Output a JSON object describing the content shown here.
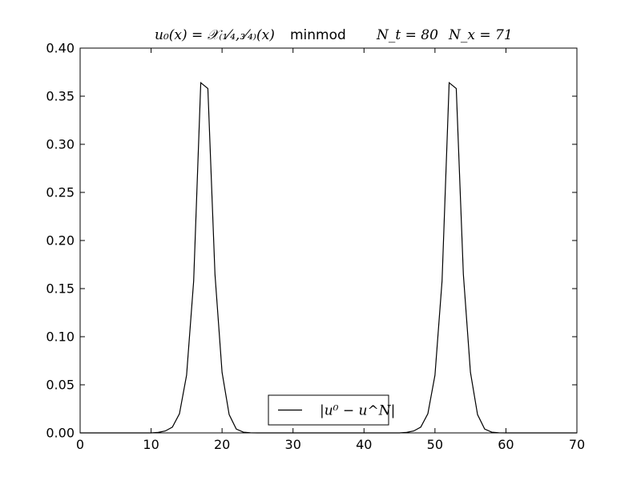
{
  "chart_data": {
    "type": "line",
    "title": {
      "parts": [
        "u₀(x) = 𝒳₍₁⁄₄,₃⁄₄₎(x)",
        "minmod",
        "N_t = 80",
        "N_x = 71"
      ]
    },
    "xlabel": "",
    "ylabel": "",
    "xlim": [
      0,
      70
    ],
    "ylim": [
      0,
      0.4
    ],
    "x_ticks": [
      0,
      10,
      20,
      30,
      40,
      50,
      60,
      70
    ],
    "x_tick_labels": [
      "0",
      "10",
      "20",
      "30",
      "40",
      "50",
      "60",
      "70"
    ],
    "y_ticks": [
      0.0,
      0.05,
      0.1,
      0.15,
      0.2,
      0.25,
      0.3,
      0.35,
      0.4
    ],
    "y_tick_labels": [
      "0.00",
      "0.05",
      "0.10",
      "0.15",
      "0.20",
      "0.25",
      "0.30",
      "0.35",
      "0.40"
    ],
    "grid": false,
    "legend_position": "bottom-center",
    "series": [
      {
        "name": "|u⁰ − u^N|",
        "color": "#000000",
        "x": [
          0,
          1,
          2,
          3,
          4,
          5,
          6,
          7,
          8,
          9,
          10,
          11,
          12,
          13,
          14,
          15,
          16,
          17,
          18,
          19,
          20,
          21,
          22,
          23,
          24,
          25,
          26,
          27,
          28,
          29,
          30,
          31,
          32,
          33,
          34,
          35,
          36,
          37,
          38,
          39,
          40,
          41,
          42,
          43,
          44,
          45,
          46,
          47,
          48,
          49,
          50,
          51,
          52,
          53,
          54,
          55,
          56,
          57,
          58,
          59,
          60,
          61,
          62,
          63,
          64,
          65,
          66,
          67,
          68,
          69,
          70
        ],
        "y": [
          0,
          0,
          0,
          0,
          0,
          0,
          0,
          0,
          0,
          0,
          0,
          0.0005,
          0.002,
          0.006,
          0.02,
          0.06,
          0.158,
          0.364,
          0.358,
          0.165,
          0.063,
          0.019,
          0.004,
          0.0008,
          0.0001,
          0,
          0,
          0,
          0,
          0,
          0,
          0,
          0,
          0,
          0,
          0,
          0,
          0,
          0,
          0,
          0,
          0,
          0,
          0,
          0,
          0,
          0.0005,
          0.002,
          0.006,
          0.02,
          0.06,
          0.158,
          0.364,
          0.358,
          0.165,
          0.063,
          0.019,
          0.004,
          0.0008,
          0.0001,
          0,
          0,
          0,
          0,
          0,
          0,
          0,
          0,
          0,
          0,
          0
        ]
      }
    ]
  }
}
